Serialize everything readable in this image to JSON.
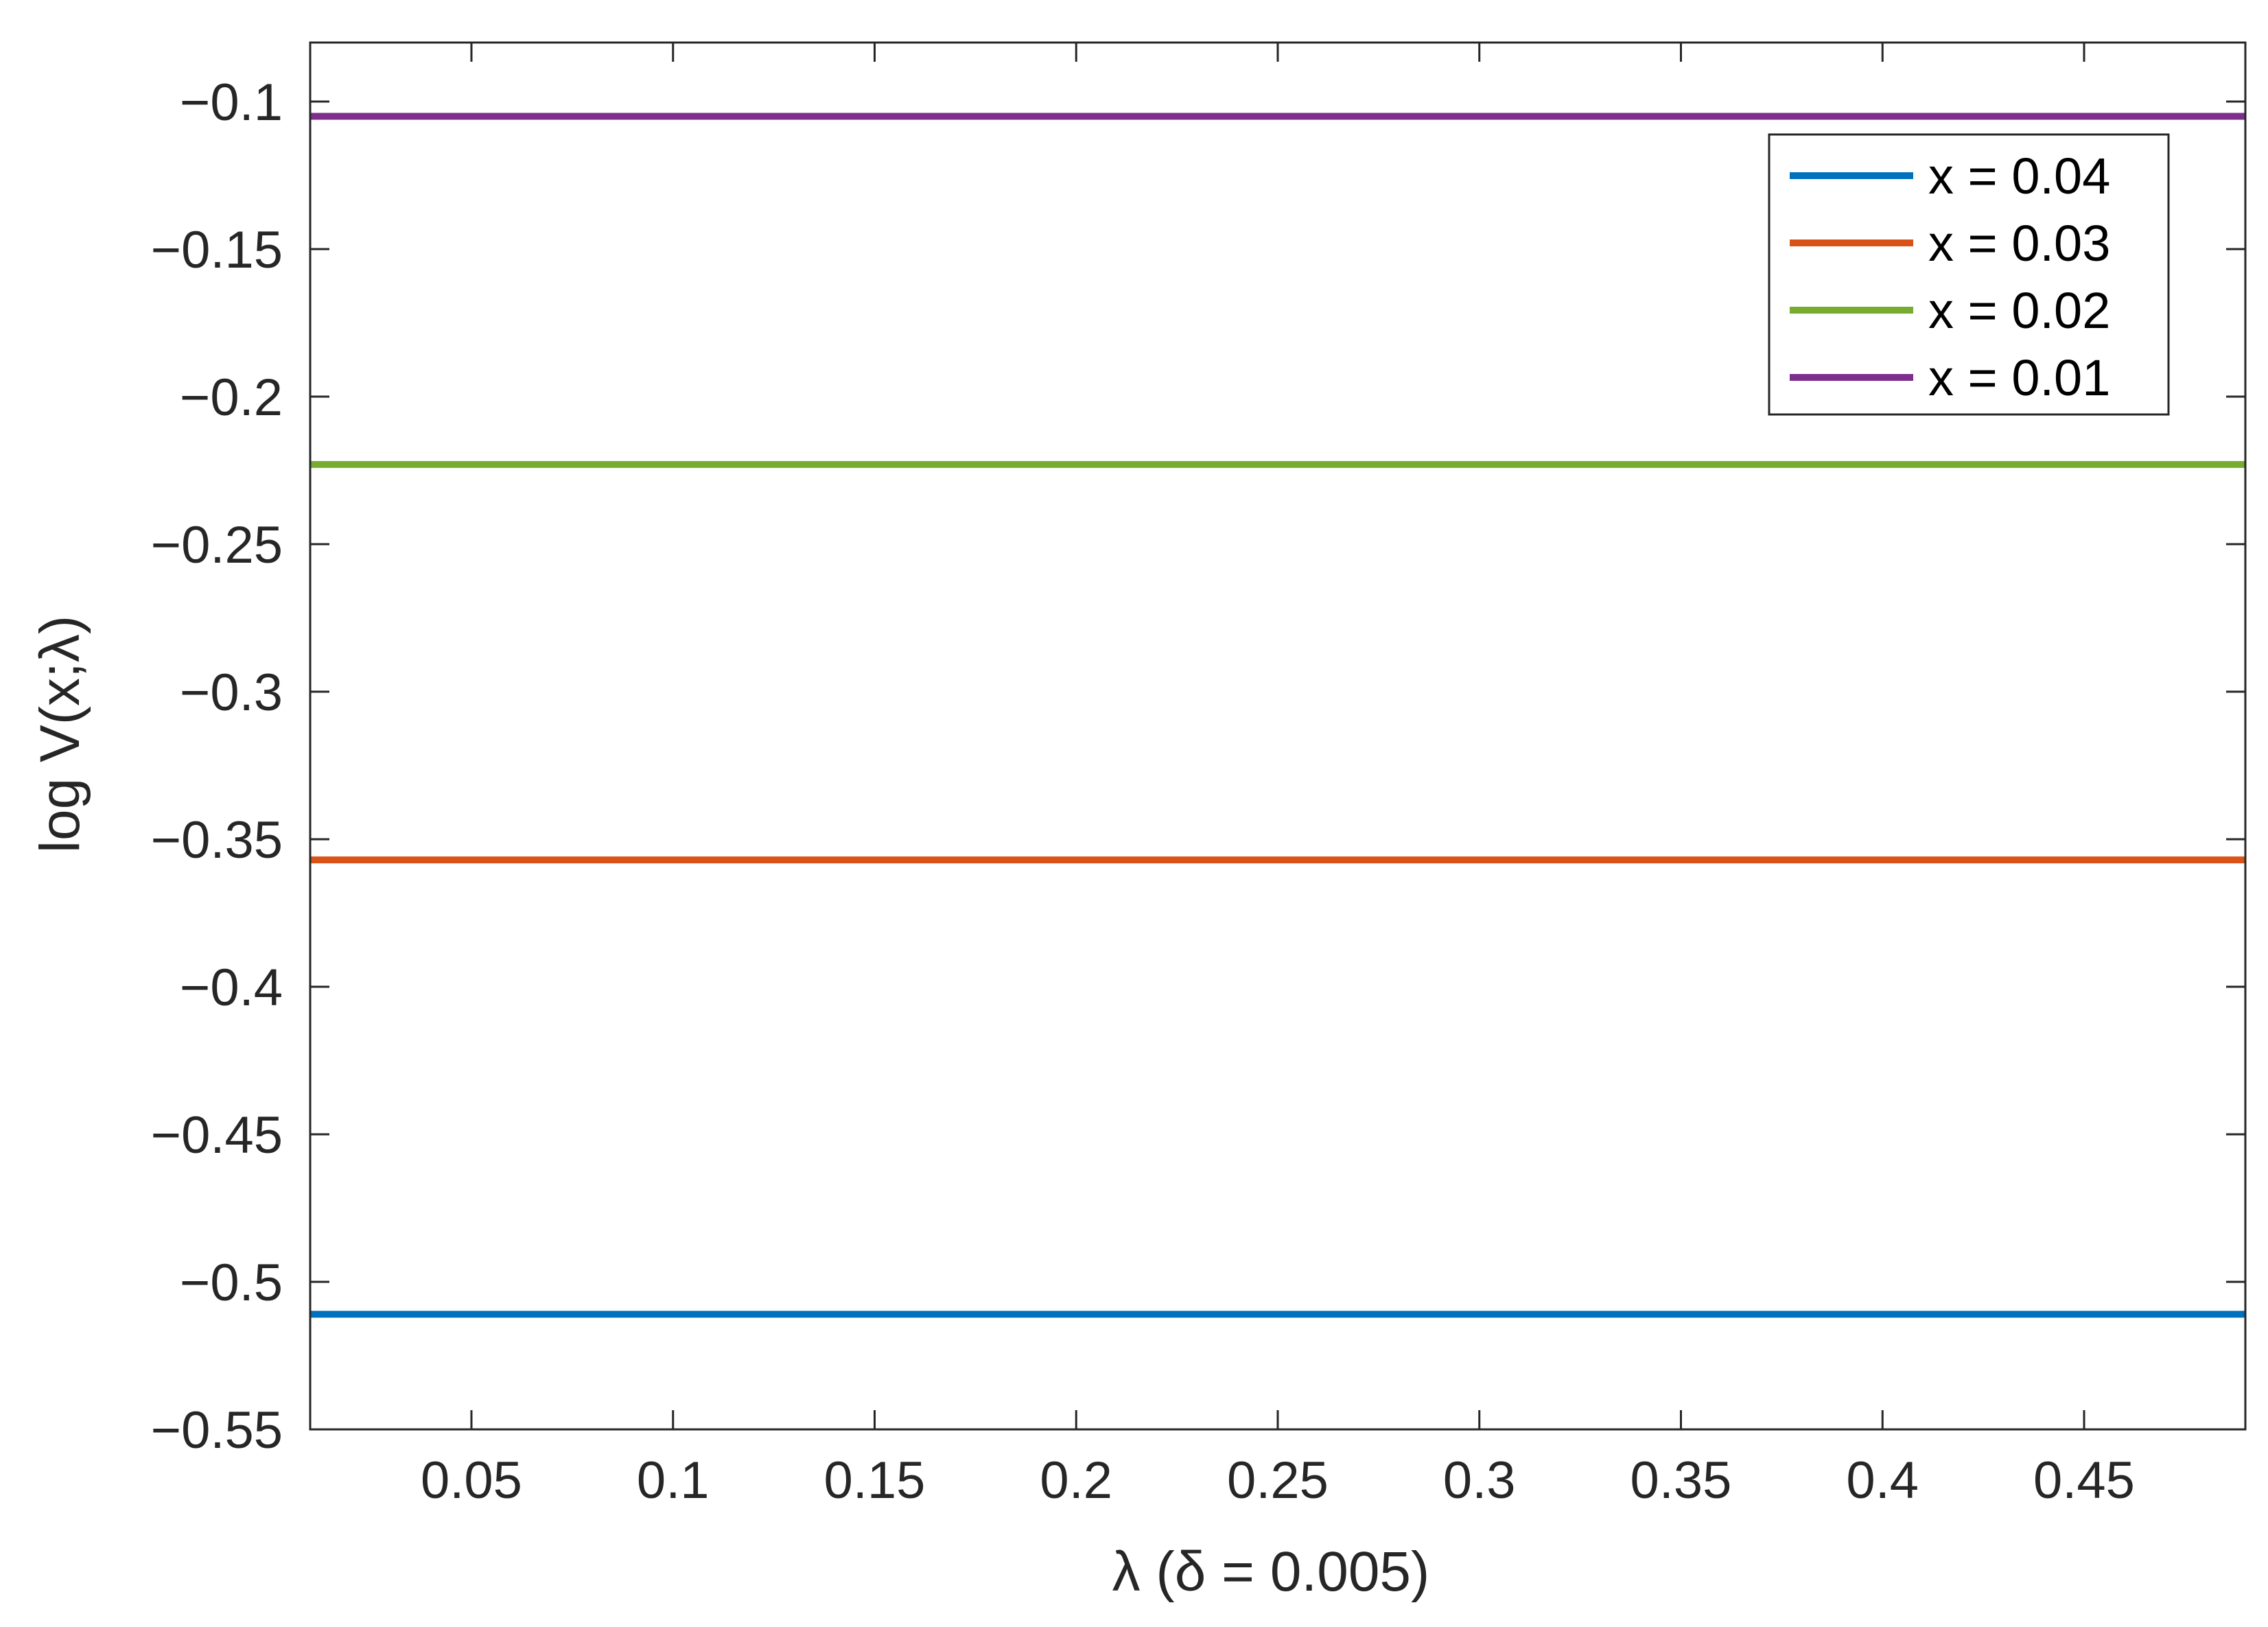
{
  "chart_data": {
    "type": "line",
    "xlabel": "λ (δ = 0.005)",
    "ylabel": "log V(x;λ)",
    "xlim": [
      0.01,
      0.49
    ],
    "ylim": [
      -0.55,
      -0.08
    ],
    "xticks": [
      0.05,
      0.1,
      0.15,
      0.2,
      0.25,
      0.3,
      0.35,
      0.4,
      0.45
    ],
    "xtick_labels": [
      "0.05",
      "0.1",
      "0.15",
      "0.2",
      "0.25",
      "0.3",
      "0.35",
      "0.4",
      "0.45"
    ],
    "yticks": [
      -0.1,
      -0.15,
      -0.2,
      -0.25,
      -0.3,
      -0.35,
      -0.4,
      -0.45,
      -0.5,
      -0.55
    ],
    "ytick_labels": [
      "−0.1",
      "−0.15",
      "−0.2",
      "−0.25",
      "−0.3",
      "−0.35",
      "−0.4",
      "−0.45",
      "−0.5",
      "−0.55"
    ],
    "grid": false,
    "legend_position": "top-right",
    "series": [
      {
        "name": "x = 0.04",
        "color": "#0072BD",
        "x": [
          0.01,
          0.49
        ],
        "y": [
          -0.511,
          -0.511
        ]
      },
      {
        "name": "x = 0.03",
        "color": "#D95319",
        "x": [
          0.01,
          0.49
        ],
        "y": [
          -0.357,
          -0.357
        ]
      },
      {
        "name": "x = 0.02",
        "color": "#77AC30",
        "x": [
          0.01,
          0.49
        ],
        "y": [
          -0.223,
          -0.223
        ]
      },
      {
        "name": "x = 0.01",
        "color": "#7E2F8E",
        "x": [
          0.01,
          0.49
        ],
        "y": [
          -0.105,
          -0.105
        ]
      }
    ]
  }
}
